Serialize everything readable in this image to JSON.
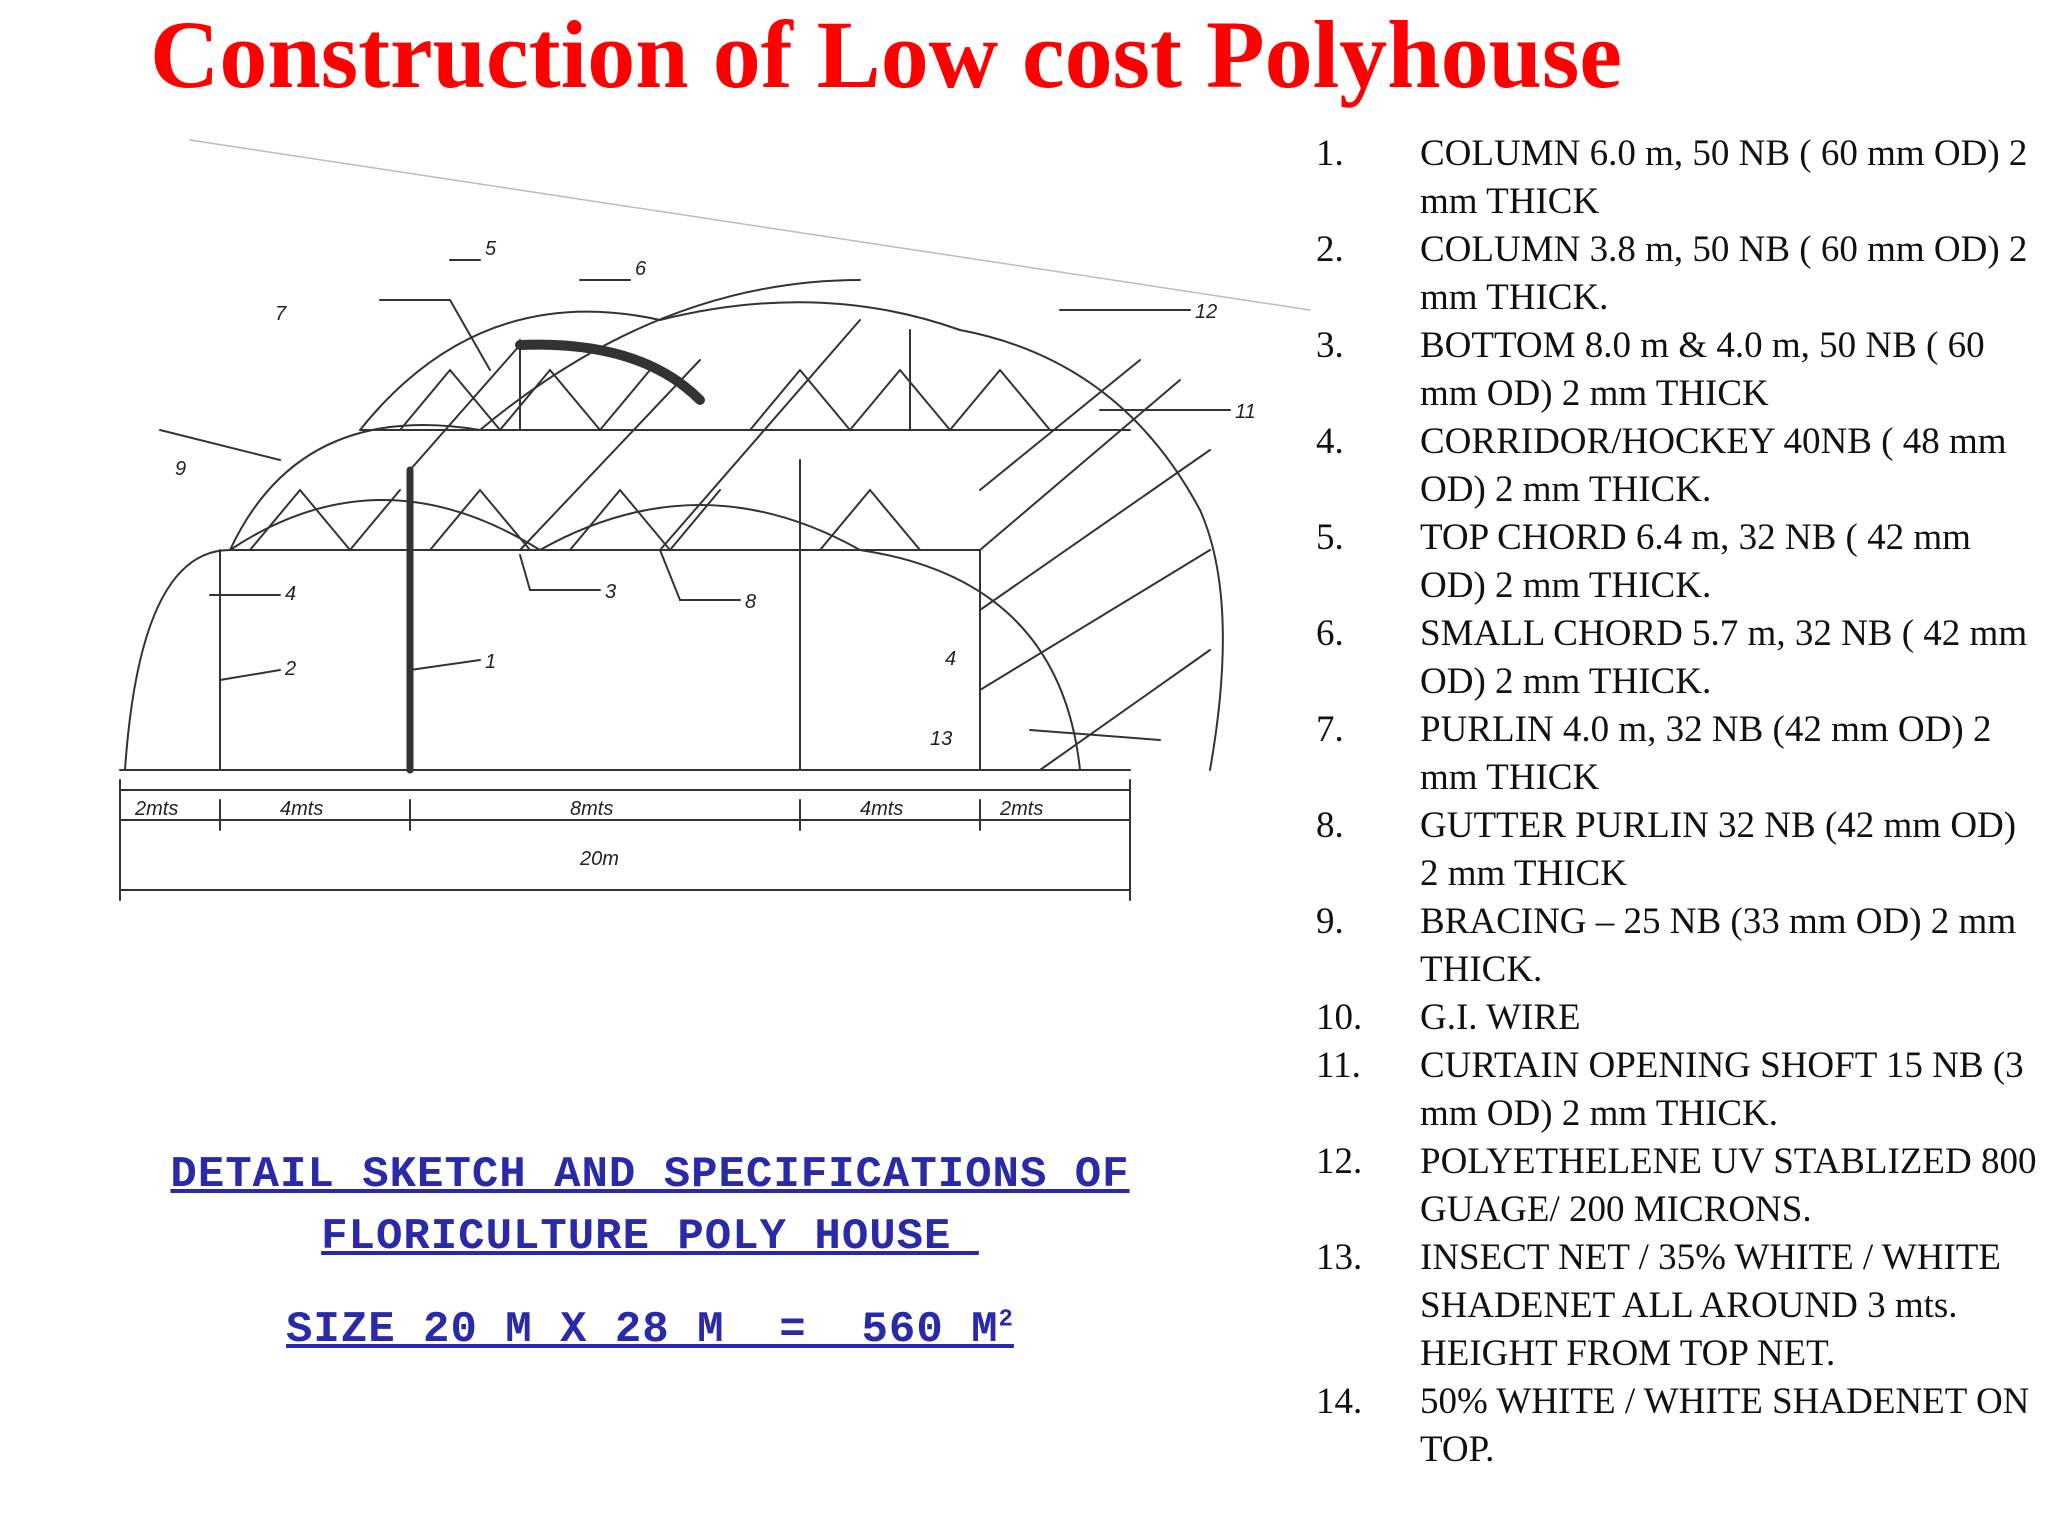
{
  "title": "Construction of Low cost Polyhouse",
  "caption": {
    "line1": "DETAIL SKETCH AND SPECIFICATIONS OF",
    "line2": "FLORICULTURE POLY HOUSE ",
    "size_prefix": "SIZE 20 M X 28 M  =  560 M",
    "size_sup": "2"
  },
  "sketch": {
    "dims": [
      "2mts",
      "4mts",
      "8mts",
      "4mts",
      "2mts"
    ],
    "total": "20m",
    "callouts": [
      "1",
      "2",
      "3",
      "4",
      "4",
      "5",
      "6",
      "7",
      "8",
      "9",
      "11",
      "12",
      "13"
    ]
  },
  "specs": [
    {
      "num": "1.",
      "text": "COLUMN 6.0 m, 50 NB ( 60 mm OD) 2 mm THICK"
    },
    {
      "num": "2.",
      "text": " COLUMN 3.8 m, 50 NB ( 60 mm OD) 2 mm THICK."
    },
    {
      "num": "3.",
      "text": " BOTTOM 8.0 m & 4.0 m, 50 NB ( 60 mm OD) 2 mm THICK"
    },
    {
      "num": "4.",
      "text": "CORRIDOR/HOCKEY 40NB ( 48 mm OD) 2 mm THICK."
    },
    {
      "num": "5.",
      "text": "TOP CHORD 6.4 m, 32 NB ( 42 mm OD) 2 mm THICK."
    },
    {
      "num": "6.",
      "text": " SMALL CHORD 5.7 m, 32 NB ( 42 mm OD) 2 mm THICK."
    },
    {
      "num": "7.",
      "text": " PURLIN 4.0 m, 32 NB (42 mm OD) 2 mm THICK"
    },
    {
      "num": "8.",
      "text": "GUTTER PURLIN 32 NB (42 mm OD) 2 mm THICK"
    },
    {
      "num": "9.",
      "text": " BRACING – 25 NB (33 mm OD) 2 mm THICK."
    },
    {
      "num": "10.",
      "text": " G.I. WIRE"
    },
    {
      "num": "11.",
      "text": "CURTAIN OPENING SHOFT 15 NB (3 mm OD) 2 mm THICK."
    },
    {
      "num": "12.",
      "text": "POLYETHELENE UV STABLIZED 800 GUAGE/ 200 MICRONS."
    },
    {
      "num": "13.",
      "text": "INSECT NET / 35% WHITE / WHITE SHADENET ALL AROUND 3 mts.   HEIGHT FROM TOP NET."
    },
    {
      "num": "14.",
      "text": " 50% WHITE / WHITE SHADENET ON TOP."
    }
  ]
}
